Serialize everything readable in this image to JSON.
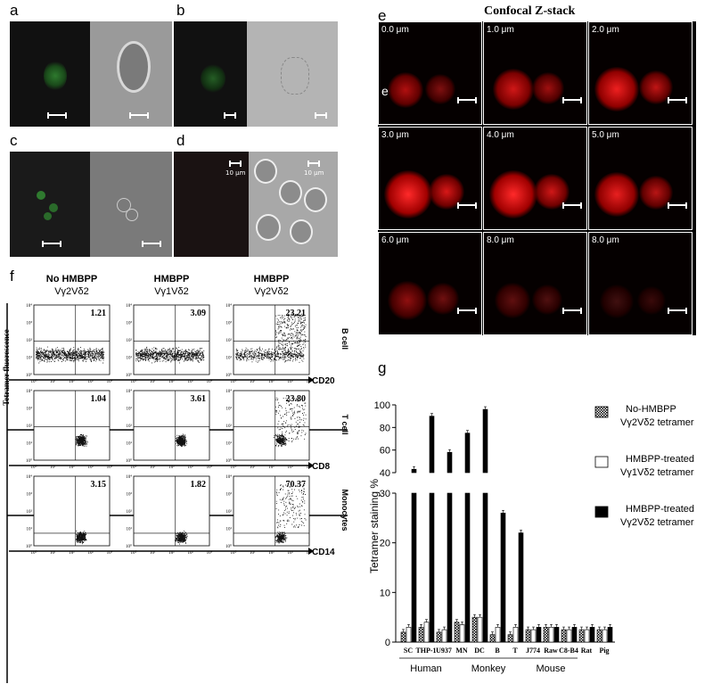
{
  "panel_labels": {
    "a": "a",
    "b": "b",
    "c": "c",
    "d": "d",
    "e": "e",
    "e2": "e",
    "f": "f",
    "g": "g"
  },
  "micro": {
    "scale_10um": "10 μm"
  },
  "confocal": {
    "title": "Confocal Z-stack",
    "depths": [
      "0.0 μm",
      "1.0 μm",
      "2.0 μm",
      "3.0 μm",
      "4.0 μm",
      "5.0 μm",
      "6.0 μm",
      "8.0 μm",
      "8.0 μm"
    ],
    "stain_color": "#e01010"
  },
  "flow": {
    "col_headers": [
      {
        "line1": "No HMBPP",
        "line2": "Vγ2Vδ2"
      },
      {
        "line1": "HMBPP",
        "line2": "Vγ1Vδ2"
      },
      {
        "line1": "HMBPP",
        "line2": "Vγ2Vδ2"
      }
    ],
    "y_axis_label": "Tetramer fluorescence",
    "rows": [
      {
        "name": "B cell",
        "marker": "CD20",
        "values": [
          "1.21",
          "3.09",
          "23.21"
        ]
      },
      {
        "name": "T cell",
        "marker": "CD8",
        "values": [
          "1.04",
          "3.61",
          "23.80"
        ]
      },
      {
        "name": "Monocytes",
        "marker": "CD14",
        "values": [
          "3.15",
          "1.82",
          "70.37"
        ]
      }
    ],
    "ticks": {
      "t0": "10⁰",
      "t1": "10¹",
      "t2": "10²",
      "t3": "10³",
      "t4": "10⁴"
    }
  },
  "chart_data": {
    "type": "bar",
    "ylabel": "Tetramer staining %",
    "y_axis_break": [
      30,
      40
    ],
    "ylim": [
      0,
      100
    ],
    "yticks_lower": [
      0,
      10,
      20,
      30
    ],
    "yticks_upper": [
      40,
      60,
      80,
      100
    ],
    "categories": [
      "SC",
      "THP-1",
      "U937",
      "MN",
      "DC",
      "B",
      "T",
      "J774",
      "Raw",
      "C8-B4",
      "Rat",
      "Pig"
    ],
    "groups": [
      {
        "name": "Human",
        "categories": [
          "SC",
          "THP-1",
          "U937"
        ]
      },
      {
        "name": "Monkey",
        "categories": [
          "MN",
          "DC",
          "B",
          "T"
        ]
      },
      {
        "name": "Mouse",
        "categories": [
          "J774",
          "Raw",
          "C8-B4"
        ]
      }
    ],
    "series": [
      {
        "name": "No-HMBPP Vγ2Vδ2 tetramer",
        "legend_line1": "No-HMBPP",
        "legend_line2": "Vγ2Vδ2 tetramer",
        "pattern": "checker",
        "values": [
          2,
          3,
          2,
          4,
          5,
          1.5,
          1.5,
          2.5,
          3,
          2.5,
          2.5,
          2.5
        ]
      },
      {
        "name": "HMBPP-treated Vγ1Vδ2 tetramer",
        "legend_line1": "HMBPP-treated",
        "legend_line2": "Vγ1Vδ2 tetramer",
        "pattern": "white",
        "values": [
          3,
          4,
          2.5,
          3.5,
          5,
          3,
          3,
          2.5,
          3,
          2.5,
          2.5,
          2.5
        ]
      },
      {
        "name": "HMBPP-treated Vγ2Vδ2 tetramer",
        "legend_line1": "HMBPP-treated",
        "legend_line2": "Vγ2Vδ2 tetramer",
        "pattern": "black",
        "values": [
          43,
          90,
          58,
          75,
          96,
          26,
          22,
          3,
          3,
          3,
          3,
          3
        ]
      }
    ]
  }
}
